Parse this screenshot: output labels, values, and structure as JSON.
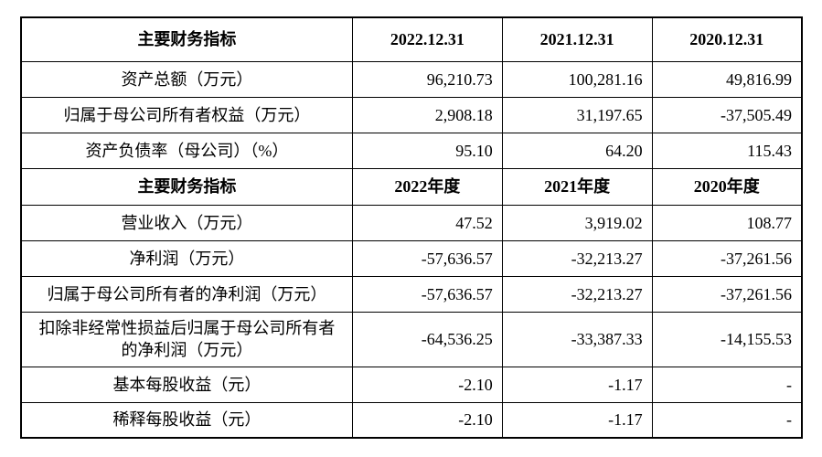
{
  "table": {
    "sections": [
      {
        "header": [
          "主要财务指标",
          "2022.12.31",
          "2021.12.31",
          "2020.12.31"
        ],
        "rows": [
          [
            "资产总额（万元）",
            "96,210.73",
            "100,281.16",
            "49,816.99"
          ],
          [
            "归属于母公司所有者权益（万元）",
            "2,908.18",
            "31,197.65",
            "-37,505.49"
          ],
          [
            "资产负债率（母公司）（%）",
            "95.10",
            "64.20",
            "115.43"
          ]
        ]
      },
      {
        "header": [
          "主要财务指标",
          "2022年度",
          "2021年度",
          "2020年度"
        ],
        "rows": [
          [
            "营业收入（万元）",
            "47.52",
            "3,919.02",
            "108.77"
          ],
          [
            "净利润（万元）",
            "-57,636.57",
            "-32,213.27",
            "-37,261.56"
          ],
          [
            "归属于母公司所有者的净利润（万元）",
            "-57,636.57",
            "-32,213.27",
            "-37,261.56"
          ],
          [
            "扣除非经常性损益后归属于母公司所有者的净利润（万元）",
            "-64,536.25",
            "-33,387.33",
            "-14,155.53"
          ],
          [
            "基本每股收益（元）",
            "-2.10",
            "-1.17",
            "-"
          ],
          [
            "稀释每股收益（元）",
            "-2.10",
            "-1.17",
            "-"
          ]
        ]
      }
    ]
  }
}
